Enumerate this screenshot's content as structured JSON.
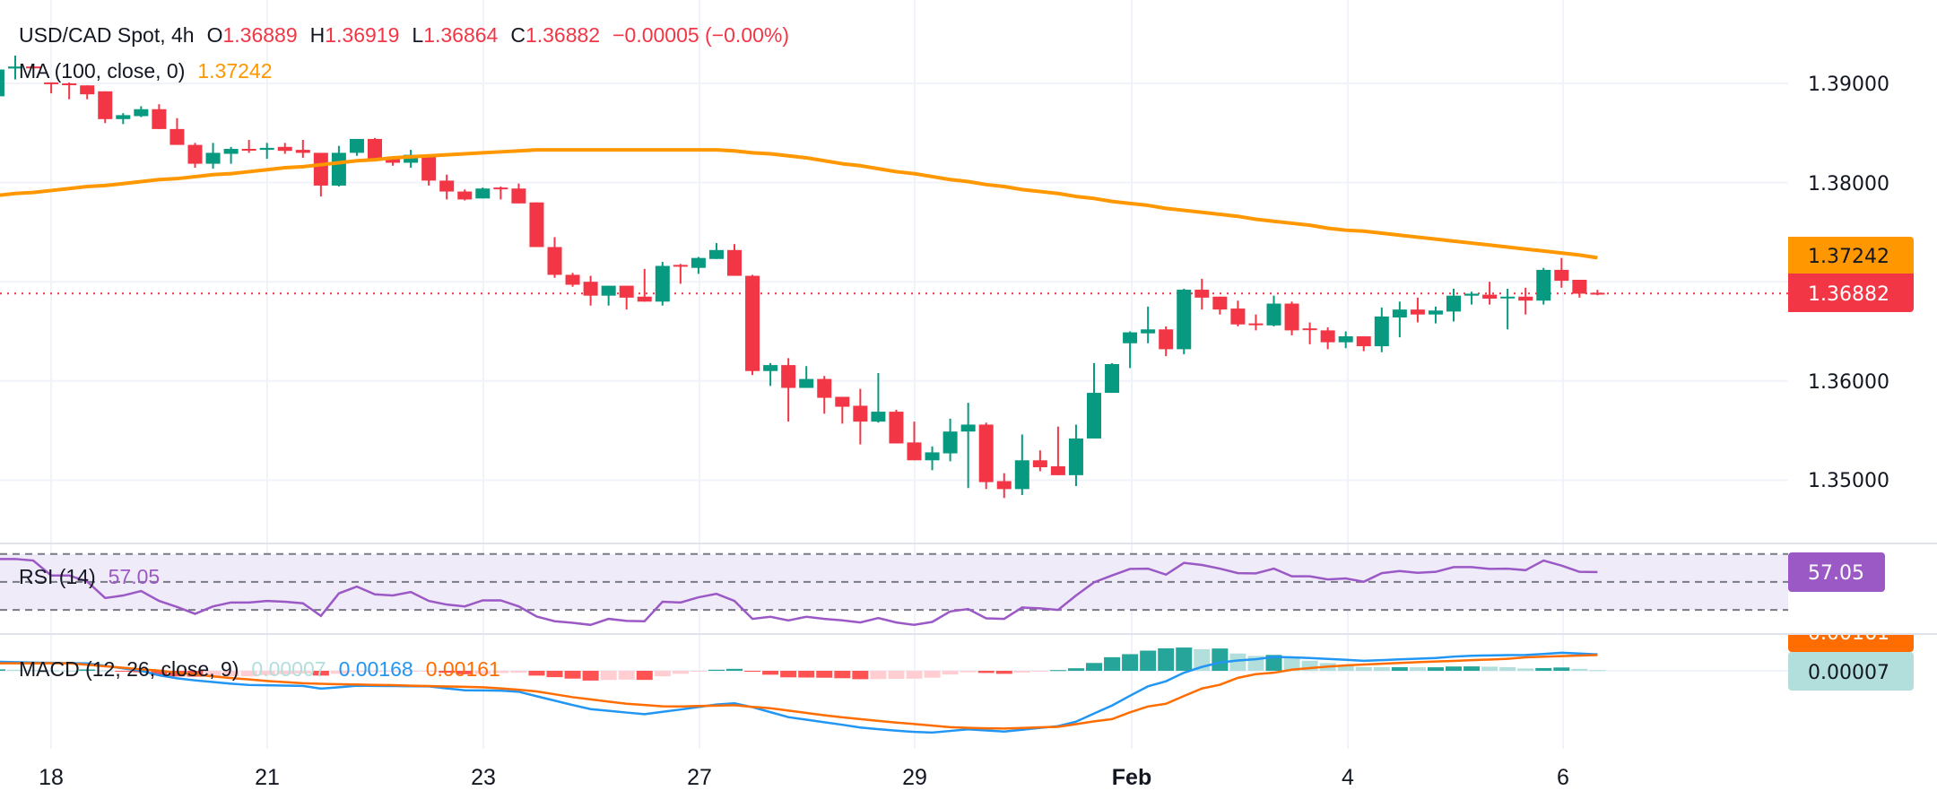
{
  "header": {
    "symbol": "USD/CAD Spot, 4h",
    "o_label": "O",
    "o_value": "1.36889",
    "h_label": "H",
    "h_value": "1.36919",
    "l_label": "L",
    "l_value": "1.36864",
    "c_label": "C",
    "c_value": "1.36882",
    "change": "−0.00005 (−0.00%)"
  },
  "ma_legend": {
    "label": "MA (100, close, 0)",
    "value": "1.37242"
  },
  "rsi_legend": {
    "label": "RSI (14)",
    "value": "57.05"
  },
  "macd_legend": {
    "label": "MACD (12, 26, close, 9)",
    "hist_value": "0.00007",
    "macd_value": "0.00168",
    "signal_value": "0.00161"
  },
  "price_axis": {
    "ticks": [
      "1.39000",
      "1.38000",
      "1.36000",
      "1.35000"
    ],
    "ma_tag": "1.37242",
    "last_price_tag": "1.36882"
  },
  "rsi_axis": {
    "tag": "57.05",
    "levels": [
      70,
      50,
      30
    ]
  },
  "macd_axis": {
    "signal_tag": "0.00161",
    "hist_tag": "0.00007"
  },
  "time_axis": {
    "labels": [
      "18",
      "21",
      "23",
      "27",
      "29",
      "Feb",
      "4",
      "6"
    ]
  },
  "colors": {
    "up": "#089981",
    "down": "#f23645",
    "ma": "#ff9800",
    "rsi": "#9b59c6",
    "rsi_band": "#f0ebf8",
    "macd": "#2196f3",
    "signal": "#ff6d00",
    "hist_up_strong": "#26a69a",
    "hist_up_weak": "#b2dfdb",
    "hist_down_strong": "#ff5252",
    "hist_down_weak": "#ffcdd2"
  },
  "chart_data": {
    "type": "candlestick",
    "title": "USD/CAD Spot, 4h",
    "ylim": [
      1.345,
      1.3955
    ],
    "grid": true,
    "x_tick_labels": [
      "18",
      "21",
      "23",
      "27",
      "29",
      "Feb",
      "4",
      "6"
    ],
    "candles_ohlc": [
      [
        1.3887,
        1.3915,
        1.3887,
        1.3914
      ],
      [
        1.3915,
        1.3928,
        1.3904,
        1.3917
      ],
      [
        1.3917,
        1.3918,
        1.3915,
        1.3916
      ],
      [
        1.3901,
        1.3901,
        1.389,
        1.39
      ],
      [
        1.39,
        1.3901,
        1.3884,
        1.3899
      ],
      [
        1.3898,
        1.3898,
        1.3884,
        1.3889
      ],
      [
        1.3892,
        1.3892,
        1.386,
        1.3864
      ],
      [
        1.3864,
        1.387,
        1.3859,
        1.3868
      ],
      [
        1.3867,
        1.3877,
        1.3866,
        1.3874
      ],
      [
        1.3874,
        1.3879,
        1.3854,
        1.3854
      ],
      [
        1.3854,
        1.3865,
        1.3838,
        1.3838
      ],
      [
        1.3838,
        1.384,
        1.3815,
        1.3819
      ],
      [
        1.3819,
        1.384,
        1.3814,
        1.383
      ],
      [
        1.3829,
        1.3836,
        1.3819,
        1.3834
      ],
      [
        1.3834,
        1.3843,
        1.383,
        1.3833
      ],
      [
        1.3833,
        1.384,
        1.3824,
        1.3835
      ],
      [
        1.3836,
        1.384,
        1.3829,
        1.3832
      ],
      [
        1.3833,
        1.3843,
        1.3825,
        1.383
      ],
      [
        1.383,
        1.383,
        1.3786,
        1.3797
      ],
      [
        1.3797,
        1.3837,
        1.3796,
        1.383
      ],
      [
        1.383,
        1.3844,
        1.3827,
        1.3844
      ],
      [
        1.3844,
        1.3845,
        1.3822,
        1.3823
      ],
      [
        1.3824,
        1.3826,
        1.3817,
        1.382
      ],
      [
        1.382,
        1.3833,
        1.3815,
        1.3828
      ],
      [
        1.3828,
        1.3828,
        1.3797,
        1.3802
      ],
      [
        1.3802,
        1.3808,
        1.3783,
        1.3791
      ],
      [
        1.3791,
        1.3793,
        1.3782,
        1.3783
      ],
      [
        1.3784,
        1.3795,
        1.3784,
        1.3794
      ],
      [
        1.3795,
        1.3796,
        1.3783,
        1.3794
      ],
      [
        1.3794,
        1.3799,
        1.3779,
        1.3779
      ],
      [
        1.378,
        1.378,
        1.3735,
        1.3735
      ],
      [
        1.3735,
        1.3745,
        1.3704,
        1.3707
      ],
      [
        1.3707,
        1.3709,
        1.3695,
        1.3697
      ],
      [
        1.37,
        1.3706,
        1.3676,
        1.3686
      ],
      [
        1.3686,
        1.3696,
        1.3676,
        1.3696
      ],
      [
        1.3696,
        1.3696,
        1.3672,
        1.3684
      ],
      [
        1.3685,
        1.3713,
        1.368,
        1.368
      ],
      [
        1.368,
        1.372,
        1.3676,
        1.3716
      ],
      [
        1.3717,
        1.3718,
        1.3698,
        1.3716
      ],
      [
        1.3714,
        1.3725,
        1.3708,
        1.3724
      ],
      [
        1.3723,
        1.3739,
        1.3723,
        1.3732
      ],
      [
        1.3732,
        1.3738,
        1.3706,
        1.3706
      ],
      [
        1.3706,
        1.3707,
        1.3606,
        1.361
      ],
      [
        1.361,
        1.3618,
        1.3595,
        1.3616
      ],
      [
        1.3616,
        1.3623,
        1.3559,
        1.3593
      ],
      [
        1.3593,
        1.3615,
        1.3593,
        1.3602
      ],
      [
        1.3602,
        1.3605,
        1.3567,
        1.3583
      ],
      [
        1.3584,
        1.3584,
        1.3557,
        1.3574
      ],
      [
        1.3575,
        1.3592,
        1.3536,
        1.3559
      ],
      [
        1.3559,
        1.3608,
        1.3558,
        1.3569
      ],
      [
        1.3569,
        1.3571,
        1.3537,
        1.3537
      ],
      [
        1.3538,
        1.3559,
        1.352,
        1.352
      ],
      [
        1.352,
        1.3534,
        1.351,
        1.3528
      ],
      [
        1.3527,
        1.3562,
        1.3519,
        1.3549
      ],
      [
        1.3549,
        1.3578,
        1.3492,
        1.3556
      ],
      [
        1.3556,
        1.3558,
        1.3491,
        1.3498
      ],
      [
        1.3499,
        1.3507,
        1.3482,
        1.3491
      ],
      [
        1.3491,
        1.3546,
        1.3485,
        1.352
      ],
      [
        1.352,
        1.353,
        1.3509,
        1.3513
      ],
      [
        1.3514,
        1.3554,
        1.3505,
        1.3505
      ],
      [
        1.3505,
        1.3556,
        1.3494,
        1.3542
      ],
      [
        1.3542,
        1.3618,
        1.3542,
        1.3588
      ],
      [
        1.3588,
        1.3618,
        1.3588,
        1.3617
      ],
      [
        1.3638,
        1.365,
        1.3613,
        1.3649
      ],
      [
        1.3648,
        1.3675,
        1.3638,
        1.3652
      ],
      [
        1.3652,
        1.3655,
        1.3625,
        1.3632
      ],
      [
        1.3632,
        1.3693,
        1.3627,
        1.3692
      ],
      [
        1.3692,
        1.3703,
        1.3672,
        1.3684
      ],
      [
        1.3685,
        1.3685,
        1.3667,
        1.3672
      ],
      [
        1.3673,
        1.3681,
        1.3655,
        1.3657
      ],
      [
        1.3658,
        1.3667,
        1.3651,
        1.3657
      ],
      [
        1.3656,
        1.3686,
        1.3655,
        1.3678
      ],
      [
        1.3678,
        1.368,
        1.3646,
        1.3651
      ],
      [
        1.3653,
        1.3659,
        1.3637,
        1.3652
      ],
      [
        1.3651,
        1.3654,
        1.3632,
        1.3639
      ],
      [
        1.3639,
        1.365,
        1.3633,
        1.3645
      ],
      [
        1.3645,
        1.3645,
        1.363,
        1.3635
      ],
      [
        1.3635,
        1.3674,
        1.3629,
        1.3665
      ],
      [
        1.3664,
        1.368,
        1.3644,
        1.3672
      ],
      [
        1.3672,
        1.3684,
        1.3659,
        1.3667
      ],
      [
        1.3667,
        1.3675,
        1.3658,
        1.3671
      ],
      [
        1.367,
        1.3693,
        1.366,
        1.3686
      ],
      [
        1.3686,
        1.369,
        1.3677,
        1.3688
      ],
      [
        1.3687,
        1.37,
        1.3677,
        1.3683
      ],
      [
        1.3684,
        1.3693,
        1.3652,
        1.3685
      ],
      [
        1.3685,
        1.3694,
        1.3667,
        1.3681
      ],
      [
        1.3681,
        1.3714,
        1.3677,
        1.3712
      ],
      [
        1.3712,
        1.3724,
        1.3694,
        1.3701
      ],
      [
        1.3702,
        1.3702,
        1.3684,
        1.3688
      ],
      [
        1.36889,
        1.36919,
        1.36864,
        1.36882
      ]
    ],
    "ma100": [
      1.3787,
      1.3789,
      1.379,
      1.3792,
      1.3794,
      1.3796,
      1.3797,
      1.3799,
      1.3801,
      1.3803,
      1.3804,
      1.3806,
      1.3808,
      1.3809,
      1.3811,
      1.3813,
      1.3815,
      1.3816,
      1.3818,
      1.382,
      1.3822,
      1.3823,
      1.3825,
      1.3826,
      1.3827,
      1.3828,
      1.3829,
      1.383,
      1.3831,
      1.3832,
      1.3833,
      1.3833,
      1.3833,
      1.3833,
      1.3833,
      1.3833,
      1.3833,
      1.3833,
      1.3833,
      1.3833,
      1.3833,
      1.3832,
      1.383,
      1.3829,
      1.3827,
      1.3825,
      1.3822,
      1.3819,
      1.3817,
      1.3814,
      1.3811,
      1.3809,
      1.3806,
      1.3803,
      1.3801,
      1.3798,
      1.3796,
      1.3793,
      1.3791,
      1.3789,
      1.3786,
      1.3784,
      1.3781,
      1.3779,
      1.3777,
      1.3774,
      1.3772,
      1.377,
      1.3768,
      1.3766,
      1.3763,
      1.3761,
      1.3759,
      1.3757,
      1.3754,
      1.3752,
      1.3751,
      1.3749,
      1.3747,
      1.3745,
      1.3743,
      1.3741,
      1.3739,
      1.3737,
      1.3735,
      1.3733,
      1.3731,
      1.3729,
      1.3727,
      1.37242
    ],
    "rsi": [
      66.4,
      66.4,
      65.3,
      54.6,
      54.6,
      50.3,
      38.5,
      40.3,
      43.5,
      36.4,
      32.1,
      27.2,
      32.5,
      35.3,
      35.3,
      36.4,
      35.8,
      34.7,
      25.7,
      41.8,
      46.7,
      41.1,
      40.3,
      42.8,
      36.4,
      33.8,
      32.5,
      36.8,
      36.8,
      32.5,
      25.3,
      21.9,
      20.8,
      19.3,
      23.6,
      22.1,
      21.9,
      35.8,
      35.3,
      39.0,
      41.5,
      36.4,
      23.6,
      25.1,
      22.5,
      25.1,
      23.6,
      22.5,
      21.0,
      24.2,
      21.0,
      19.3,
      21.4,
      28.9,
      30.6,
      24.0,
      23.6,
      31.7,
      31.1,
      30.0,
      40.3,
      49.7,
      54.6,
      59.3,
      59.5,
      55.2,
      63.6,
      62.1,
      59.5,
      56.3,
      56.1,
      59.5,
      54.0,
      54.0,
      51.8,
      52.5,
      50.1,
      56.3,
      57.8,
      56.5,
      57.2,
      60.6,
      60.6,
      59.3,
      59.5,
      58.4,
      65.3,
      61.7,
      57.2,
      57.05
    ],
    "macd": [
      0.00092,
      0.00088,
      0.00084,
      0.00081,
      0.00078,
      0.00076,
      0.0005,
      0.00025,
      0.0,
      -0.00046,
      -0.00077,
      -0.00098,
      -0.00115,
      -0.00132,
      -0.00145,
      -0.00148,
      -0.00151,
      -0.00155,
      -0.00182,
      -0.00168,
      -0.00153,
      -0.00155,
      -0.00156,
      -0.00158,
      -0.00159,
      -0.0018,
      -0.00199,
      -0.00201,
      -0.00203,
      -0.00214,
      -0.0026,
      -0.00305,
      -0.0035,
      -0.00392,
      -0.00409,
      -0.00427,
      -0.00443,
      -0.0042,
      -0.00396,
      -0.0037,
      -0.00345,
      -0.00332,
      -0.00372,
      -0.00423,
      -0.00474,
      -0.005,
      -0.00526,
      -0.00552,
      -0.0058,
      -0.00597,
      -0.00612,
      -0.00625,
      -0.00632,
      -0.00615,
      -0.00598,
      -0.0061,
      -0.00621,
      -0.00603,
      -0.00584,
      -0.00566,
      -0.0052,
      -0.00437,
      -0.00355,
      -0.00255,
      -0.00159,
      -0.00107,
      -0.0002,
      0.0004,
      0.00085,
      0.00105,
      0.00118,
      0.00142,
      0.00138,
      0.00131,
      0.00122,
      0.00112,
      0.00102,
      0.00109,
      0.00117,
      0.00124,
      0.00131,
      0.00145,
      0.00154,
      0.00157,
      0.0016,
      0.00162,
      0.00172,
      0.00184,
      0.00176,
      0.00168
    ],
    "signal": [
      0.00077,
      0.00077,
      0.00077,
      0.00077,
      0.00077,
      0.00062,
      0.00046,
      0.00031,
      0.00015,
      2e-05,
      -0.00019,
      -0.00038,
      -0.00057,
      -0.00075,
      -0.00088,
      -0.00104,
      -0.00116,
      -0.00127,
      -0.00133,
      -0.00137,
      -0.0014,
      -0.00144,
      -0.00147,
      -0.00152,
      -0.00156,
      -0.0016,
      -0.00164,
      -0.00168,
      -0.0018,
      -0.00194,
      -0.00211,
      -0.0024,
      -0.0027,
      -0.00292,
      -0.00315,
      -0.00337,
      -0.0035,
      -0.00363,
      -0.00365,
      -0.0036,
      -0.00356,
      -0.00352,
      -0.00369,
      -0.00383,
      -0.00407,
      -0.00431,
      -0.00455,
      -0.00476,
      -0.00494,
      -0.00512,
      -0.0053,
      -0.00544,
      -0.00561,
      -0.00577,
      -0.00583,
      -0.00588,
      -0.0059,
      -0.00585,
      -0.00578,
      -0.00573,
      -0.00546,
      -0.00517,
      -0.00494,
      -0.00425,
      -0.00365,
      -0.00337,
      -0.00258,
      -0.00181,
      -0.00143,
      -0.00072,
      -0.00034,
      -0.0002,
      0.00011,
      0.00028,
      0.00043,
      0.00055,
      0.00064,
      0.00072,
      0.0008,
      0.00088,
      0.00095,
      0.00101,
      0.00109,
      0.00115,
      0.00123,
      0.00138,
      0.00144,
      0.0015,
      0.00156,
      0.00161
    ]
  }
}
